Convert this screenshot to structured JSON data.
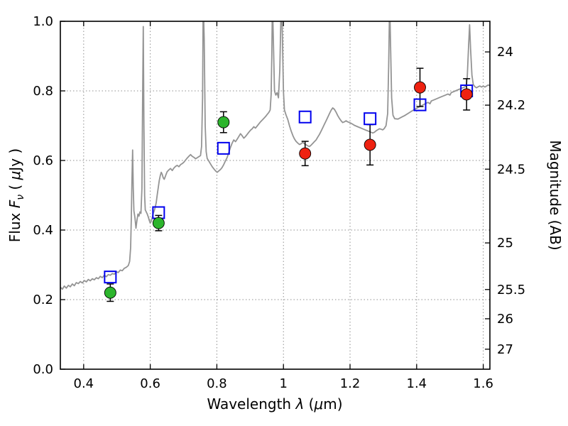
{
  "figure": {
    "background": "#ffffff"
  },
  "chart_data": {
    "type": "line+scatter",
    "xlabel_text": "Wavelength λ (μm)",
    "xlabel_parts": {
      "pre": "Wavelength ",
      "lambda": "λ",
      "mid": " (",
      "mu": "μ",
      "post": "m)"
    },
    "ylabel_left_text": "Flux Fν ( μJy )",
    "ylabel_left_parts": {
      "pre": "Flux ",
      "f": "F",
      "sub": "ν",
      "mid": " ( ",
      "mu": "μ",
      "post": "Jy )"
    },
    "ylabel_right": "Magnitude (AB)",
    "x_range": [
      0.33,
      1.62
    ],
    "y_range": [
      0.0,
      1.0
    ],
    "x_ticks": {
      "values": [
        0.4,
        0.6,
        0.8,
        1.0,
        1.2,
        1.4,
        1.6
      ],
      "labels": [
        "0.4",
        "0.6",
        "0.8",
        "1",
        "1.2",
        "1.4",
        "1.6"
      ]
    },
    "y_ticks_left": {
      "values": [
        0.0,
        0.2,
        0.4,
        0.6,
        0.8,
        1.0
      ],
      "labels": [
        "0.0",
        "0.2",
        "0.4",
        "0.6",
        "0.8",
        "1.0"
      ]
    },
    "y_ticks_right": {
      "labels": [
        "24",
        "24.2",
        "24.5",
        "25",
        "25.5",
        "26",
        "27"
      ],
      "flux_positions": [
        0.912,
        0.759,
        0.575,
        0.363,
        0.229,
        0.145,
        0.0575
      ]
    },
    "grid": {
      "on": true,
      "style": "dotted",
      "color": "#8f8f8f"
    },
    "series": [
      {
        "name": "galaxy-model-spectrum",
        "type": "line",
        "color": "#949494",
        "width": 1.8,
        "points": [
          [
            0.33,
            0.236
          ],
          [
            0.336,
            0.23
          ],
          [
            0.342,
            0.239
          ],
          [
            0.348,
            0.233
          ],
          [
            0.354,
            0.241
          ],
          [
            0.36,
            0.237
          ],
          [
            0.366,
            0.245
          ],
          [
            0.372,
            0.24
          ],
          [
            0.378,
            0.249
          ],
          [
            0.384,
            0.246
          ],
          [
            0.39,
            0.252
          ],
          [
            0.396,
            0.248
          ],
          [
            0.402,
            0.255
          ],
          [
            0.408,
            0.251
          ],
          [
            0.414,
            0.258
          ],
          [
            0.42,
            0.254
          ],
          [
            0.426,
            0.26
          ],
          [
            0.432,
            0.257
          ],
          [
            0.438,
            0.263
          ],
          [
            0.444,
            0.26
          ],
          [
            0.45,
            0.267
          ],
          [
            0.456,
            0.263
          ],
          [
            0.462,
            0.27
          ],
          [
            0.468,
            0.266
          ],
          [
            0.474,
            0.272
          ],
          [
            0.48,
            0.27
          ],
          [
            0.486,
            0.275
          ],
          [
            0.492,
            0.273
          ],
          [
            0.498,
            0.28
          ],
          [
            0.504,
            0.278
          ],
          [
            0.51,
            0.285
          ],
          [
            0.516,
            0.283
          ],
          [
            0.522,
            0.29
          ],
          [
            0.528,
            0.293
          ],
          [
            0.534,
            0.298
          ],
          [
            0.538,
            0.31
          ],
          [
            0.541,
            0.35
          ],
          [
            0.543,
            0.43
          ],
          [
            0.545,
            0.54
          ],
          [
            0.547,
            0.63
          ],
          [
            0.549,
            0.52
          ],
          [
            0.551,
            0.455
          ],
          [
            0.554,
            0.435
          ],
          [
            0.557,
            0.405
          ],
          [
            0.56,
            0.428
          ],
          [
            0.563,
            0.446
          ],
          [
            0.566,
            0.44
          ],
          [
            0.569,
            0.452
          ],
          [
            0.572,
            0.448
          ],
          [
            0.575,
            0.52
          ],
          [
            0.577,
            0.76
          ],
          [
            0.579,
            0.985
          ],
          [
            0.581,
            0.7
          ],
          [
            0.583,
            0.5
          ],
          [
            0.585,
            0.458
          ],
          [
            0.588,
            0.452
          ],
          [
            0.591,
            0.446
          ],
          [
            0.594,
            0.438
          ],
          [
            0.597,
            0.428
          ],
          [
            0.6,
            0.42
          ],
          [
            0.603,
            0.425
          ],
          [
            0.606,
            0.436
          ],
          [
            0.609,
            0.448
          ],
          [
            0.612,
            0.456
          ],
          [
            0.615,
            0.466
          ],
          [
            0.618,
            0.48
          ],
          [
            0.621,
            0.502
          ],
          [
            0.624,
            0.522
          ],
          [
            0.627,
            0.542
          ],
          [
            0.63,
            0.556
          ],
          [
            0.633,
            0.566
          ],
          [
            0.636,
            0.56
          ],
          [
            0.639,
            0.55
          ],
          [
            0.642,
            0.546
          ],
          [
            0.645,
            0.553
          ],
          [
            0.648,
            0.561
          ],
          [
            0.651,
            0.568
          ],
          [
            0.656,
            0.573
          ],
          [
            0.661,
            0.577
          ],
          [
            0.666,
            0.571
          ],
          [
            0.671,
            0.578
          ],
          [
            0.676,
            0.583
          ],
          [
            0.681,
            0.586
          ],
          [
            0.686,
            0.582
          ],
          [
            0.691,
            0.588
          ],
          [
            0.696,
            0.591
          ],
          [
            0.701,
            0.595
          ],
          [
            0.706,
            0.601
          ],
          [
            0.711,
            0.607
          ],
          [
            0.716,
            0.612
          ],
          [
            0.721,
            0.617
          ],
          [
            0.726,
            0.612
          ],
          [
            0.731,
            0.609
          ],
          [
            0.736,
            0.605
          ],
          [
            0.741,
            0.608
          ],
          [
            0.746,
            0.611
          ],
          [
            0.751,
            0.614
          ],
          [
            0.754,
            0.64
          ],
          [
            0.757,
            0.78
          ],
          [
            0.759,
            1.06
          ],
          [
            0.762,
            0.95
          ],
          [
            0.765,
            0.7
          ],
          [
            0.768,
            0.625
          ],
          [
            0.771,
            0.606
          ],
          [
            0.776,
            0.598
          ],
          [
            0.781,
            0.59
          ],
          [
            0.786,
            0.582
          ],
          [
            0.791,
            0.576
          ],
          [
            0.796,
            0.57
          ],
          [
            0.801,
            0.566
          ],
          [
            0.806,
            0.57
          ],
          [
            0.811,
            0.574
          ],
          [
            0.816,
            0.58
          ],
          [
            0.821,
            0.589
          ],
          [
            0.826,
            0.599
          ],
          [
            0.831,
            0.609
          ],
          [
            0.836,
            0.623
          ],
          [
            0.841,
            0.638
          ],
          [
            0.846,
            0.65
          ],
          [
            0.851,
            0.659
          ],
          [
            0.856,
            0.654
          ],
          [
            0.861,
            0.661
          ],
          [
            0.866,
            0.669
          ],
          [
            0.871,
            0.677
          ],
          [
            0.876,
            0.671
          ],
          [
            0.881,
            0.664
          ],
          [
            0.886,
            0.669
          ],
          [
            0.891,
            0.675
          ],
          [
            0.896,
            0.681
          ],
          [
            0.901,
            0.687
          ],
          [
            0.906,
            0.691
          ],
          [
            0.911,
            0.697
          ],
          [
            0.916,
            0.693
          ],
          [
            0.921,
            0.699
          ],
          [
            0.926,
            0.705
          ],
          [
            0.931,
            0.711
          ],
          [
            0.936,
            0.716
          ],
          [
            0.941,
            0.721
          ],
          [
            0.946,
            0.726
          ],
          [
            0.951,
            0.732
          ],
          [
            0.956,
            0.738
          ],
          [
            0.96,
            0.745
          ],
          [
            0.963,
            0.79
          ],
          [
            0.965,
            0.9
          ],
          [
            0.967,
            1.06
          ],
          [
            0.97,
            0.93
          ],
          [
            0.973,
            0.8
          ],
          [
            0.977,
            0.788
          ],
          [
            0.981,
            0.795
          ],
          [
            0.985,
            0.78
          ],
          [
            0.989,
            0.86
          ],
          [
            0.992,
            1.0
          ],
          [
            0.994,
            1.06
          ],
          [
            0.997,
            0.95
          ],
          [
            1.0,
            0.8
          ],
          [
            1.003,
            0.745
          ],
          [
            1.008,
            0.73
          ],
          [
            1.013,
            0.718
          ],
          [
            1.018,
            0.7
          ],
          [
            1.023,
            0.685
          ],
          [
            1.028,
            0.672
          ],
          [
            1.033,
            0.662
          ],
          [
            1.038,
            0.655
          ],
          [
            1.043,
            0.65
          ],
          [
            1.048,
            0.646
          ],
          [
            1.053,
            0.648
          ],
          [
            1.058,
            0.652
          ],
          [
            1.063,
            0.648
          ],
          [
            1.068,
            0.645
          ],
          [
            1.073,
            0.642
          ],
          [
            1.078,
            0.64
          ],
          [
            1.083,
            0.644
          ],
          [
            1.088,
            0.649
          ],
          [
            1.093,
            0.654
          ],
          [
            1.098,
            0.659
          ],
          [
            1.103,
            0.667
          ],
          [
            1.108,
            0.675
          ],
          [
            1.113,
            0.684
          ],
          [
            1.118,
            0.694
          ],
          [
            1.123,
            0.704
          ],
          [
            1.128,
            0.714
          ],
          [
            1.133,
            0.724
          ],
          [
            1.138,
            0.734
          ],
          [
            1.143,
            0.744
          ],
          [
            1.148,
            0.751
          ],
          [
            1.153,
            0.747
          ],
          [
            1.158,
            0.739
          ],
          [
            1.163,
            0.729
          ],
          [
            1.168,
            0.721
          ],
          [
            1.173,
            0.714
          ],
          [
            1.178,
            0.709
          ],
          [
            1.183,
            0.711
          ],
          [
            1.188,
            0.714
          ],
          [
            1.193,
            0.711
          ],
          [
            1.198,
            0.709
          ],
          [
            1.203,
            0.707
          ],
          [
            1.208,
            0.704
          ],
          [
            1.213,
            0.701
          ],
          [
            1.218,
            0.699
          ],
          [
            1.223,
            0.697
          ],
          [
            1.228,
            0.695
          ],
          [
            1.233,
            0.693
          ],
          [
            1.238,
            0.691
          ],
          [
            1.243,
            0.689
          ],
          [
            1.248,
            0.687
          ],
          [
            1.253,
            0.685
          ],
          [
            1.258,
            0.683
          ],
          [
            1.263,
            0.681
          ],
          [
            1.268,
            0.679
          ],
          [
            1.273,
            0.681
          ],
          [
            1.278,
            0.685
          ],
          [
            1.283,
            0.688
          ],
          [
            1.288,
            0.691
          ],
          [
            1.293,
            0.69
          ],
          [
            1.298,
            0.688
          ],
          [
            1.303,
            0.692
          ],
          [
            1.308,
            0.7
          ],
          [
            1.313,
            0.735
          ],
          [
            1.316,
            0.87
          ],
          [
            1.319,
            1.06
          ],
          [
            1.322,
            0.92
          ],
          [
            1.325,
            0.78
          ],
          [
            1.329,
            0.73
          ],
          [
            1.334,
            0.72
          ],
          [
            1.344,
            0.719
          ],
          [
            1.354,
            0.724
          ],
          [
            1.364,
            0.729
          ],
          [
            1.374,
            0.735
          ],
          [
            1.384,
            0.741
          ],
          [
            1.394,
            0.747
          ],
          [
            1.404,
            0.752
          ],
          [
            1.414,
            0.757
          ],
          [
            1.424,
            0.762
          ],
          [
            1.434,
            0.767
          ],
          [
            1.44,
            0.763
          ],
          [
            1.444,
            0.771
          ],
          [
            1.454,
            0.775
          ],
          [
            1.464,
            0.779
          ],
          [
            1.474,
            0.783
          ],
          [
            1.484,
            0.787
          ],
          [
            1.494,
            0.791
          ],
          [
            1.5,
            0.788
          ],
          [
            1.504,
            0.795
          ],
          [
            1.514,
            0.799
          ],
          [
            1.524,
            0.803
          ],
          [
            1.534,
            0.807
          ],
          [
            1.544,
            0.811
          ],
          [
            1.549,
            0.815
          ],
          [
            1.552,
            0.84
          ],
          [
            1.556,
            0.93
          ],
          [
            1.559,
            0.99
          ],
          [
            1.562,
            0.92
          ],
          [
            1.566,
            0.845
          ],
          [
            1.57,
            0.818
          ],
          [
            1.575,
            0.812
          ],
          [
            1.58,
            0.809
          ],
          [
            1.585,
            0.812
          ],
          [
            1.59,
            0.814
          ],
          [
            1.595,
            0.811
          ],
          [
            1.6,
            0.814
          ],
          [
            1.605,
            0.811
          ],
          [
            1.61,
            0.814
          ],
          [
            1.615,
            0.817
          ],
          [
            1.62,
            0.815
          ]
        ]
      },
      {
        "name": "model-photometry-squares",
        "type": "scatter",
        "marker": "square-open",
        "color": "#0000ee",
        "size": 16,
        "points": [
          [
            0.48,
            0.265
          ],
          [
            0.625,
            0.45
          ],
          [
            0.82,
            0.635
          ],
          [
            1.065,
            0.725
          ],
          [
            1.26,
            0.72
          ],
          [
            1.41,
            0.76
          ],
          [
            1.55,
            0.8
          ]
        ]
      },
      {
        "name": "observed-photometry-optical",
        "type": "scatter",
        "marker": "circle",
        "color": "#2db52d",
        "size": 16,
        "yerr": [
          0.025,
          0.022,
          0.03
        ],
        "points": [
          [
            0.48,
            0.22
          ],
          [
            0.625,
            0.42
          ],
          [
            0.82,
            0.71
          ]
        ]
      },
      {
        "name": "observed-photometry-infrared",
        "type": "scatter",
        "marker": "circle",
        "color": "#ee2211",
        "size": 16,
        "yerr": [
          0.035,
          0.058,
          0.055,
          0.045
        ],
        "points": [
          [
            1.065,
            0.62
          ],
          [
            1.26,
            0.645
          ],
          [
            1.41,
            0.81
          ],
          [
            1.55,
            0.79
          ]
        ]
      }
    ]
  }
}
